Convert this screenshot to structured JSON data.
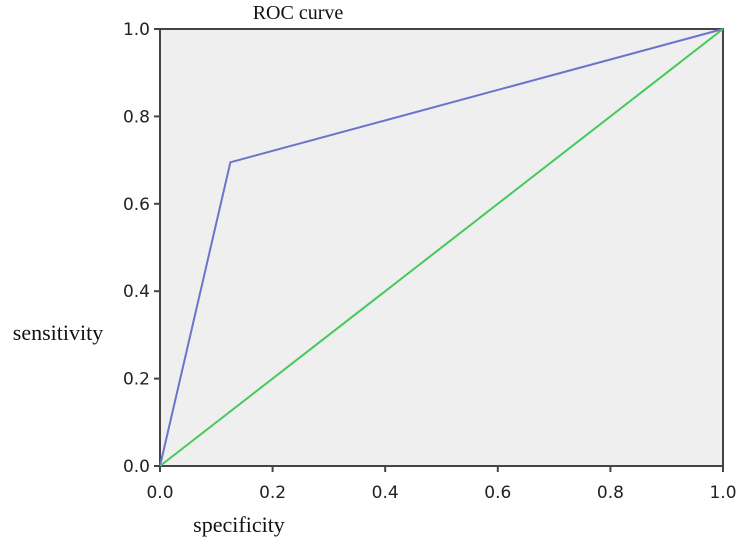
{
  "chart_data": {
    "type": "line",
    "title": "ROC curve",
    "xlabel": "specificity",
    "ylabel": "sensitivity",
    "xlim": [
      0.0,
      1.0
    ],
    "ylim": [
      0.0,
      1.0
    ],
    "x_ticks": [
      "0.0",
      "0.2",
      "0.4",
      "0.6",
      "0.8",
      "1.0"
    ],
    "y_ticks": [
      "0.0",
      "0.2",
      "0.4",
      "0.6",
      "0.8",
      "1.0"
    ],
    "grid": false,
    "plot_background": "#efefef",
    "series": [
      {
        "color": "#6a75c9",
        "x": [
          0.0,
          0.125,
          1.0
        ],
        "y": [
          0.0,
          0.695,
          1.0
        ]
      },
      {
        "color": "#46c95a",
        "x": [
          0.0,
          1.0
        ],
        "y": [
          0.0,
          1.0
        ]
      }
    ]
  }
}
